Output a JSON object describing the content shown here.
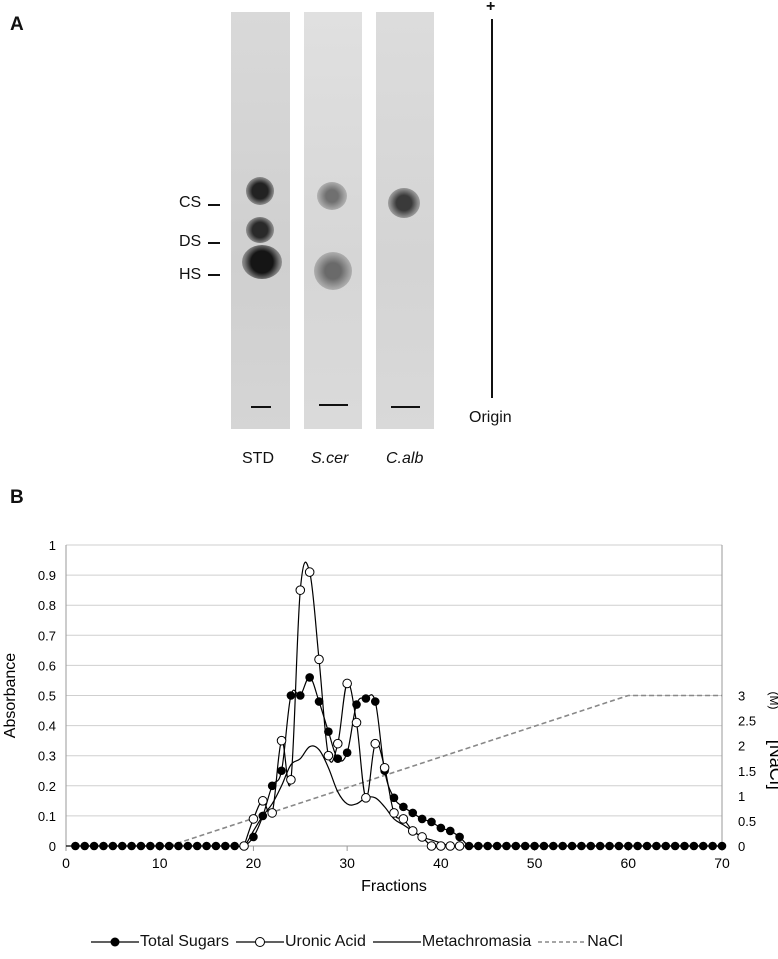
{
  "panel_a": {
    "letter": "A",
    "markers": {
      "cs": "CS",
      "ds": "DS",
      "hs": "HS"
    },
    "lanes": {
      "std": "STD",
      "scer": "S.cer",
      "calb": "C.alb"
    },
    "plus": "+",
    "origin": "Origin"
  },
  "panel_b": {
    "letter": "B"
  },
  "chart_data": {
    "type": "line",
    "xlabel": "Fractions",
    "ylabel": "Absorbance",
    "y2label": "[NaCl]",
    "y2unit": "(M)",
    "xlim": [
      0,
      70
    ],
    "ylim": [
      0,
      1
    ],
    "y2lim": [
      0,
      3
    ],
    "x_ticks": [
      "0",
      "10",
      "20",
      "30",
      "40",
      "50",
      "60",
      "70"
    ],
    "y_ticks": [
      "0",
      "0.1",
      "0.2",
      "0.3",
      "0.4",
      "0.5",
      "0.6",
      "0.7",
      "0.8",
      "0.9",
      "1"
    ],
    "y2_ticks": [
      "0",
      "0.5",
      "1",
      "1.5",
      "2",
      "2.5",
      "3"
    ],
    "grid": true,
    "legend_position": "bottom",
    "series": [
      {
        "name": "Total Sugars",
        "marker": "filled-circle",
        "color": "#000000",
        "x": [
          1,
          2,
          3,
          4,
          5,
          6,
          7,
          8,
          9,
          10,
          11,
          12,
          13,
          14,
          15,
          16,
          17,
          18,
          19,
          20,
          21,
          22,
          23,
          24,
          25,
          26,
          27,
          28,
          29,
          30,
          31,
          32,
          33,
          34,
          35,
          36,
          37,
          38,
          39,
          40,
          41,
          42,
          43,
          44,
          45,
          46,
          47,
          48,
          49,
          50,
          51,
          52,
          53,
          54,
          55,
          56,
          57,
          58,
          59,
          60,
          61,
          62,
          63,
          64,
          65,
          66,
          67,
          68,
          69,
          70
        ],
        "y": [
          0,
          0,
          0,
          0,
          0,
          0,
          0,
          0,
          0,
          0,
          0,
          0,
          0,
          0,
          0,
          0,
          0,
          0,
          0,
          0.03,
          0.1,
          0.2,
          0.25,
          0.5,
          0.5,
          0.56,
          0.48,
          0.38,
          0.29,
          0.31,
          0.47,
          0.49,
          0.48,
          0.25,
          0.16,
          0.13,
          0.11,
          0.09,
          0.08,
          0.06,
          0.05,
          0.03,
          0,
          0,
          0,
          0,
          0,
          0,
          0,
          0,
          0,
          0,
          0,
          0,
          0,
          0,
          0,
          0,
          0,
          0,
          0,
          0,
          0,
          0,
          0,
          0,
          0,
          0,
          0,
          0
        ]
      },
      {
        "name": "Uronic Acid",
        "marker": "open-circle",
        "color": "#000000",
        "x": [
          19,
          20,
          21,
          22,
          23,
          24,
          25,
          26,
          27,
          28,
          29,
          30,
          31,
          32,
          33,
          34,
          35,
          36,
          37,
          38,
          39,
          40,
          41,
          42
        ],
        "y": [
          0,
          0.09,
          0.15,
          0.11,
          0.35,
          0.22,
          0.85,
          0.91,
          0.62,
          0.3,
          0.34,
          0.54,
          0.41,
          0.16,
          0.34,
          0.26,
          0.11,
          0.09,
          0.05,
          0.03,
          0,
          0,
          0,
          0
        ]
      },
      {
        "name": "Metachromasia",
        "marker": "none",
        "color": "#000000",
        "x": [
          0,
          10,
          18,
          19,
          20,
          21,
          22,
          23,
          24,
          25,
          26,
          27,
          28,
          29,
          30,
          31,
          32,
          33,
          34,
          35,
          36,
          37,
          38,
          39,
          40,
          41,
          42,
          43,
          44,
          50,
          60,
          70
        ],
        "y": [
          0,
          0,
          0,
          0,
          0.05,
          0.1,
          0.14,
          0.2,
          0.27,
          0.29,
          0.33,
          0.32,
          0.26,
          0.18,
          0.14,
          0.14,
          0.16,
          0.16,
          0.13,
          0.09,
          0.07,
          0.05,
          0.03,
          0.02,
          0.01,
          0,
          0,
          0,
          0,
          0,
          0,
          0
        ]
      },
      {
        "name": "NaCl",
        "marker": "none",
        "color": "#888888",
        "dashed": true,
        "axis": "right",
        "x": [
          11,
          60,
          70
        ],
        "y": [
          0,
          3,
          3
        ]
      }
    ]
  }
}
